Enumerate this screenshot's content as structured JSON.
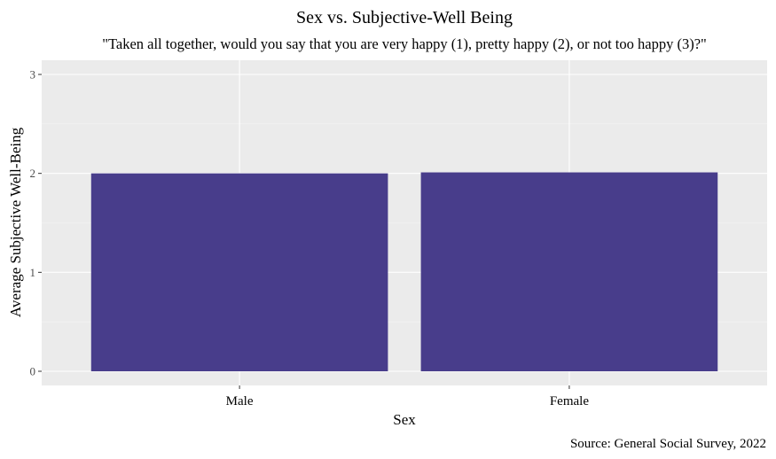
{
  "chart_data": {
    "type": "bar",
    "title": "Sex vs. Subjective-Well Being",
    "subtitle": "\"Taken all together, would you say that you are very happy (1), pretty happy (2), or not too happy (3)?\"",
    "xlabel": "Sex",
    "ylabel": "Average Subjective Well-Being",
    "caption": "Source: General Social Survey, 2022",
    "categories": [
      "Male",
      "Female"
    ],
    "values": [
      2.0,
      2.01
    ],
    "ylim": [
      0,
      3
    ],
    "yticks": [
      0,
      1,
      2,
      3
    ],
    "grid": true,
    "legend": "none",
    "colors": {
      "bar": "#483D8B",
      "panel": "#EBEBEB",
      "grid_major": "#FFFFFF",
      "grid_minor": "#F5F5F5"
    }
  }
}
